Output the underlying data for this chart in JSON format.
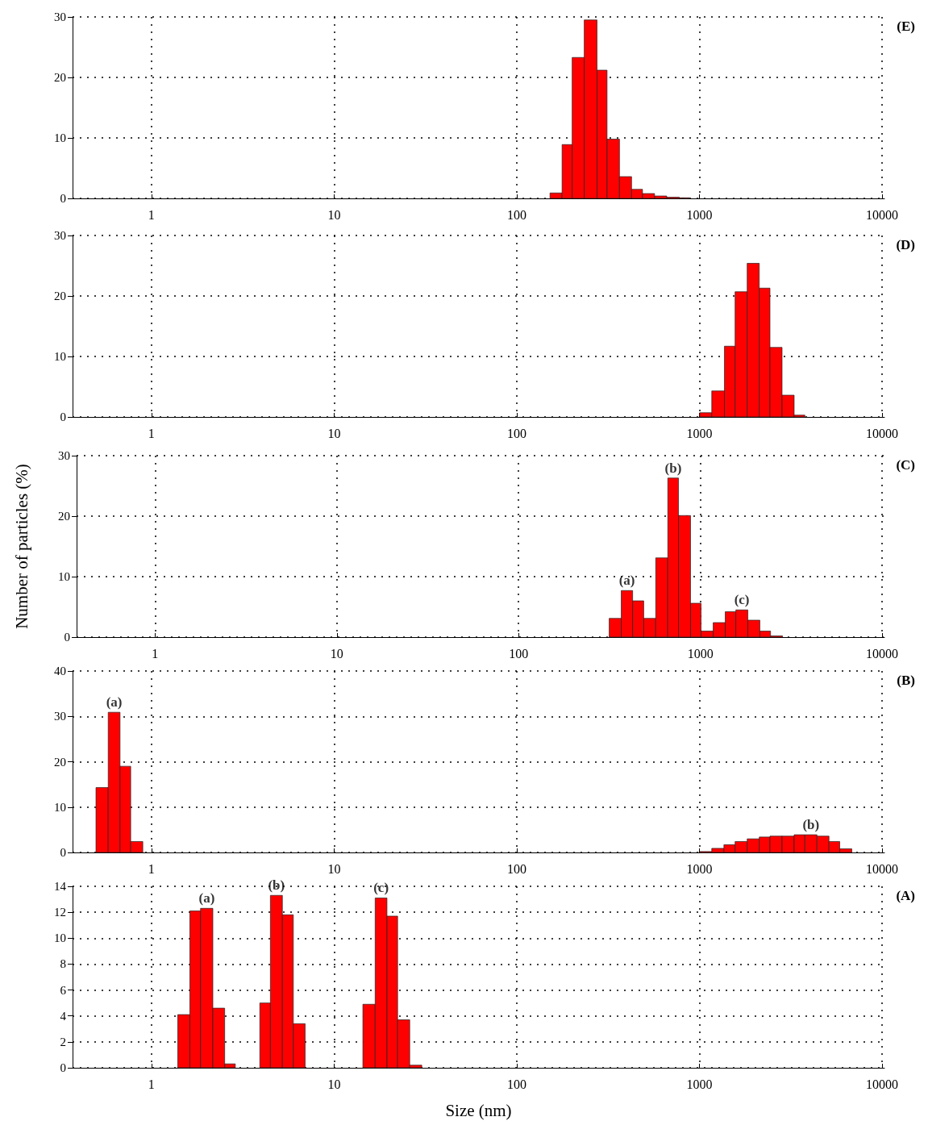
{
  "chart_data": [
    {
      "type": "histogram",
      "color": "#ff0000",
      "bins": [
        152,
        177,
        201,
        234,
        275,
        312,
        365,
        425,
        488,
        568,
        662,
        776,
        883
      ],
      "values": [
        0.9,
        8.9,
        23.3,
        29.5,
        21.2,
        9.8,
        3.6,
        1.5,
        0.8,
        0.4,
        0.2,
        0.1
      ],
      "log": "x",
      "xlim": [
        0.37,
        10300
      ],
      "xticks": [
        1,
        10,
        100,
        1000,
        10000
      ],
      "ylim": [
        0,
        30
      ],
      "yticks": [
        0,
        10,
        20,
        30
      ],
      "grid": true,
      "annotations": [
        "(E)"
      ]
    },
    {
      "type": "histogram",
      "color": "#ff0000",
      "bins": [
        1003,
        1168,
        1370,
        1567,
        1825,
        2125,
        2433,
        2833,
        3299,
        3777
      ],
      "values": [
        0.7,
        4.3,
        11.7,
        20.7,
        25.4,
        21.3,
        11.5,
        3.6,
        0.3
      ],
      "log": "x",
      "xlim": [
        0.37,
        10300
      ],
      "xticks": [
        1,
        10,
        100,
        1000,
        10000
      ],
      "ylim": [
        0,
        30
      ],
      "yticks": [
        0,
        10,
        20,
        30
      ],
      "grid": true,
      "annotations": [
        "(D)"
      ]
    },
    {
      "type": "histogram",
      "ylabel": "Number of particles (%)",
      "color": "#ff0000",
      "bins": [
        315,
        367,
        424,
        488,
        568,
        662,
        758,
        883,
        1009,
        1176,
        1370,
        1567,
        1825,
        2125,
        2433,
        2833
      ],
      "values": [
        3.1,
        7.7,
        6.0,
        3.1,
        13.1,
        26.3,
        20.1,
        5.6,
        1.0,
        2.4,
        4.2,
        4.5,
        2.8,
        1.0,
        0.2
      ],
      "log": "x",
      "xlim": [
        0.37,
        10300
      ],
      "xticks": [
        1,
        10,
        100,
        1000,
        10000
      ],
      "ylim": [
        0,
        30
      ],
      "yticks": [
        0,
        10,
        20,
        30
      ],
      "grid": true,
      "annotations": [
        "(C)",
        "(a)",
        "(b)",
        "(c)"
      ]
    },
    {
      "type": "histogram",
      "color": "#ff0000",
      "bins": [
        0.497,
        0.58,
        0.673,
        0.77,
        0.897,
        1003,
        1168,
        1361,
        1567,
        1825,
        2125,
        2433,
        2833,
        3299,
        3777,
        4398,
        5120,
        5861,
        6825
      ],
      "values": [
        14.3,
        30.9,
        19.0,
        2.4,
        0,
        0.2,
        0.9,
        1.7,
        2.4,
        3.0,
        3.4,
        3.6,
        3.6,
        3.9,
        3.9,
        3.6,
        2.4,
        0.8
      ],
      "log": "x",
      "xlim": [
        0.37,
        10300
      ],
      "xticks": [
        1,
        10,
        100,
        1000,
        10000
      ],
      "ylim": [
        0,
        40
      ],
      "yticks": [
        0,
        10,
        20,
        30,
        40
      ],
      "grid": true,
      "annotations": [
        "(B)",
        "(a)",
        "(b)"
      ]
    },
    {
      "type": "histogram",
      "xlabel": "Size (nm)",
      "color": "#ff0000",
      "bins": [
        1.393,
        1.623,
        1.857,
        2.169,
        2.517,
        2.878,
        3.92,
        4.48,
        5.21,
        5.98,
        6.94,
        14.37,
        16.78,
        19.47,
        22.27,
        25.94,
        30.2
      ],
      "values": [
        4.1,
        12.1,
        12.3,
        4.6,
        0.3,
        0,
        5.0,
        13.3,
        11.8,
        3.4,
        0,
        4.9,
        13.1,
        11.7,
        3.7,
        0.2
      ],
      "log": "x",
      "xlim": [
        0.37,
        10300
      ],
      "xticks": [
        1,
        10,
        100,
        1000,
        10000
      ],
      "ylim": [
        0,
        14
      ],
      "yticks": [
        0,
        2,
        4,
        6,
        8,
        10,
        12,
        14
      ],
      "grid": true,
      "annotations": [
        "(A)",
        "(a)",
        "(b)",
        "(c)"
      ]
    }
  ]
}
